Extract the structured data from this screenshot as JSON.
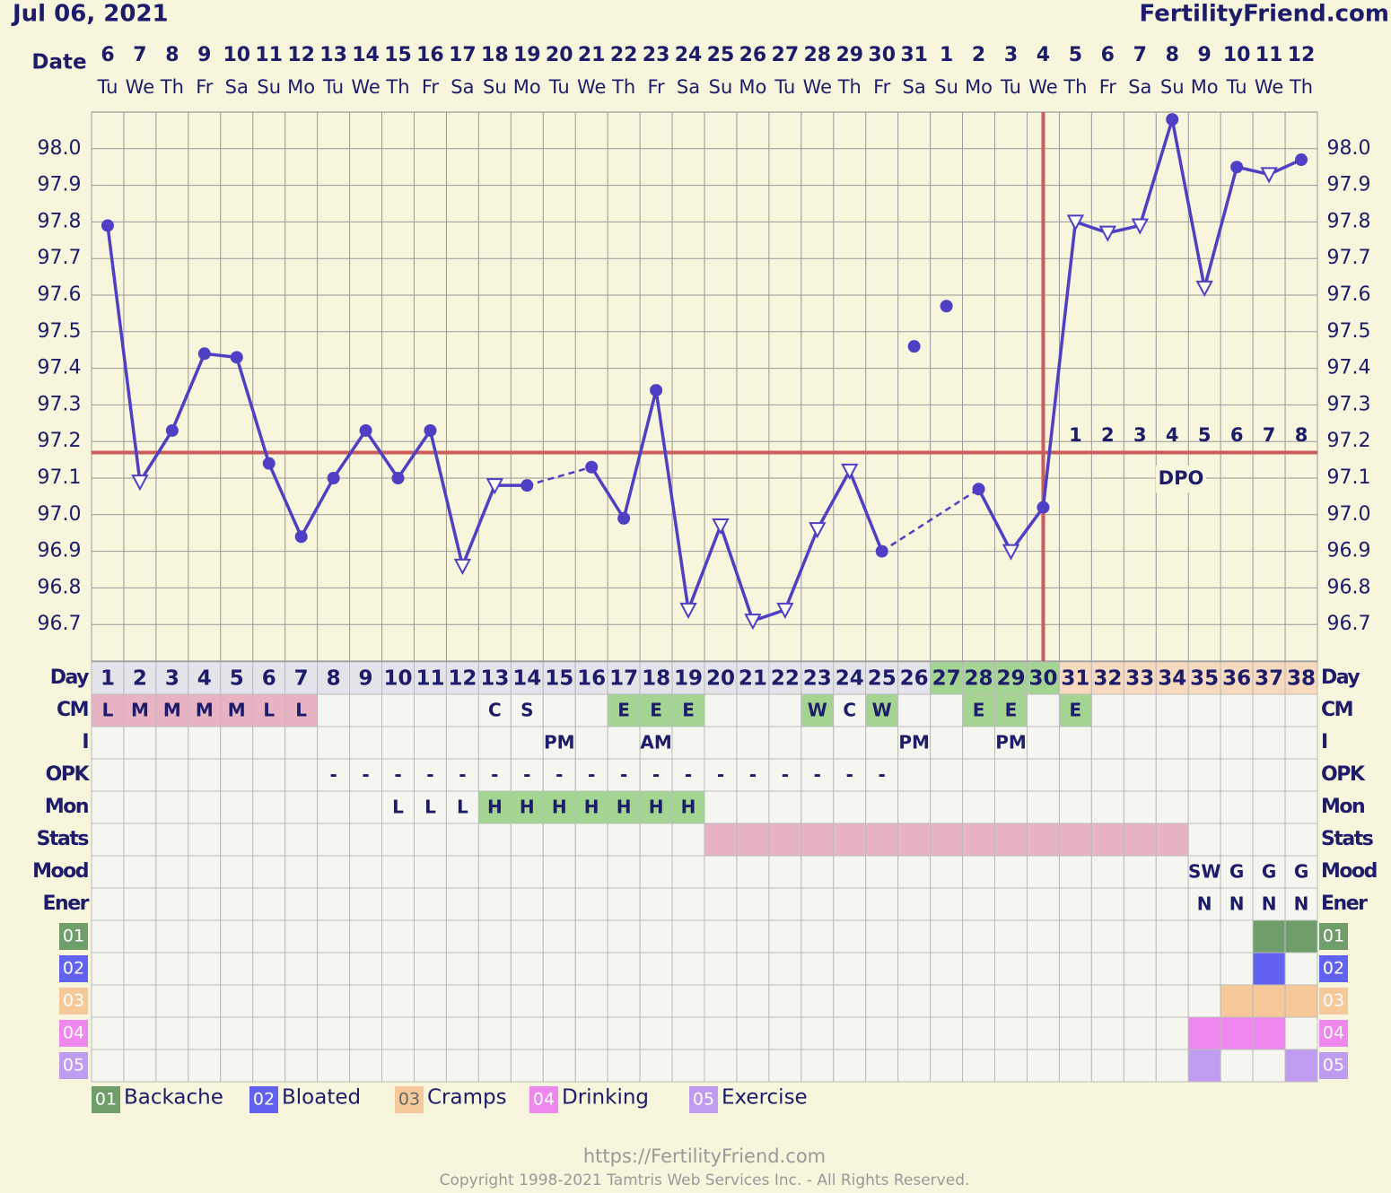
{
  "header": {
    "date": "Jul 06, 2021",
    "site": "FertilityFriend.com",
    "date_label": "Date"
  },
  "chart_data": {
    "type": "line",
    "dates": [
      "6",
      "7",
      "8",
      "9",
      "10",
      "11",
      "12",
      "13",
      "14",
      "15",
      "16",
      "17",
      "18",
      "19",
      "20",
      "21",
      "22",
      "23",
      "24",
      "25",
      "26",
      "27",
      "28",
      "29",
      "30",
      "31",
      "1",
      "2",
      "3",
      "4",
      "5",
      "6",
      "7",
      "8",
      "9",
      "10",
      "11",
      "12"
    ],
    "weekdays": [
      "Tu",
      "We",
      "Th",
      "Fr",
      "Sa",
      "Su",
      "Mo",
      "Tu",
      "We",
      "Th",
      "Fr",
      "Sa",
      "Su",
      "Mo",
      "Tu",
      "We",
      "Th",
      "Fr",
      "Sa",
      "Su",
      "Mo",
      "Tu",
      "We",
      "Th",
      "Fr",
      "Sa",
      "Su",
      "Mo",
      "Tu",
      "We",
      "Th",
      "Fr",
      "Sa",
      "Su",
      "Mo",
      "Tu",
      "We",
      "Th"
    ],
    "ylim": [
      96.6,
      98.1
    ],
    "yticks": [
      96.7,
      96.8,
      96.9,
      {
        "value": 97,
        "label": "97.0"
      },
      97.1,
      97.2,
      97.3,
      97.4,
      97.5,
      97.6,
      97.7,
      97.8,
      97.9,
      {
        "value": 98,
        "label": "98.0"
      }
    ],
    "grid": true,
    "series": [
      {
        "color": "#4f3fc4",
        "line": true,
        "values": [
          97.79,
          97.09,
          97.23,
          97.44,
          97.43,
          97.14,
          96.94,
          97.1,
          97.23,
          97.1,
          97.23,
          96.86,
          97.08,
          97.08,
          null,
          97.13,
          96.99,
          97.34,
          96.74,
          96.97,
          96.71,
          96.74,
          96.96,
          97.12,
          96.9,
          null,
          null,
          97.07,
          96.9,
          97.02,
          97.8,
          97.77,
          97.79,
          98.08,
          97.62,
          97.95,
          97.93,
          97.97
        ],
        "markers": [
          "circle",
          "triangle",
          "circle",
          "circle",
          "circle",
          "circle",
          "circle",
          "circle",
          "circle",
          "circle",
          "circle",
          "triangle",
          "triangle",
          "circle",
          null,
          "circle",
          "circle",
          "circle",
          "triangle",
          "triangle",
          "triangle",
          "triangle",
          "triangle",
          "triangle",
          "circle",
          null,
          null,
          "circle",
          "triangle",
          "circle",
          "triangle",
          "triangle",
          "triangle",
          "circle",
          "triangle",
          "circle",
          "triangle",
          "circle"
        ]
      },
      {
        "color": "#4f3fc4",
        "line": false,
        "values": [
          null,
          null,
          null,
          null,
          null,
          null,
          null,
          null,
          null,
          null,
          null,
          null,
          null,
          null,
          null,
          null,
          null,
          null,
          null,
          null,
          null,
          null,
          null,
          null,
          null,
          97.46,
          97.57,
          null,
          null,
          null,
          null,
          null,
          null,
          null,
          null,
          null,
          null,
          null
        ],
        "marker": "circle"
      }
    ],
    "coverline": 97.17,
    "coverline_color": "#cc5c5c",
    "ovulation_day": 30,
    "dpo_labels": [
      "1",
      "2",
      "3",
      "4",
      "5",
      "6",
      "7",
      "8"
    ],
    "dpo_title": "DPO"
  },
  "table": {
    "rows": [
      {
        "label": "Day",
        "cells": [
          "1",
          "2",
          "3",
          "4",
          "5",
          "6",
          "7",
          "8",
          "9",
          "10",
          "11",
          "12",
          "13",
          "14",
          "15",
          "16",
          "17",
          "18",
          "19",
          "20",
          "21",
          "22",
          "23",
          "24",
          "25",
          "26",
          "27",
          "28",
          "29",
          "30",
          "31",
          "32",
          "33",
          "34",
          "35",
          "36",
          "37",
          "38"
        ],
        "fill": [
          "#e3e3ea",
          "#e3e3ea",
          "#e3e3ea",
          "#e3e3ea",
          "#e3e3ea",
          "#e3e3ea",
          "#e3e3ea",
          "#e3e3ea",
          "#e3e3ea",
          "#e3e3ea",
          "#e3e3ea",
          "#e3e3ea",
          "#e3e3ea",
          "#e3e3ea",
          "#e3e3ea",
          "#e3e3ea",
          "#e3e3ea",
          "#e3e3ea",
          "#e3e3ea",
          "#e3e3ea",
          "#e3e3ea",
          "#e3e3ea",
          "#e3e3ea",
          "#e3e3ea",
          "#e3e3ea",
          "#e3e3ea",
          "#a3d491",
          "#a3d491",
          "#a3d491",
          "#a3d491",
          "#f7d9bd",
          "#f7d9bd",
          "#f7d9bd",
          "#f7d9bd",
          "#f7d9bd",
          "#f7d9bd",
          "#f7d9bd",
          "#f7d9bd"
        ]
      },
      {
        "label": "CM",
        "cells": [
          "L",
          "M",
          "M",
          "M",
          "M",
          "L",
          "L",
          null,
          null,
          null,
          null,
          null,
          "C",
          "S",
          null,
          null,
          "E",
          "E",
          "E",
          null,
          null,
          null,
          "W",
          "C",
          "W",
          null,
          null,
          "E",
          "E",
          null,
          "E",
          null,
          null,
          null,
          null,
          null,
          null,
          null
        ],
        "fill": [
          "#e8b4c4",
          "#e8b4c4",
          "#e8b4c4",
          "#e8b4c4",
          "#e8b4c4",
          "#e8b4c4",
          "#e8b4c4",
          null,
          null,
          null,
          null,
          null,
          null,
          null,
          null,
          null,
          "#a3d491",
          "#a3d491",
          "#a3d491",
          null,
          null,
          null,
          "#a3d491",
          null,
          "#a3d491",
          null,
          null,
          "#a3d491",
          "#a3d491",
          null,
          "#a3d491",
          null,
          null,
          null,
          null,
          null,
          null,
          null
        ]
      },
      {
        "label": "I",
        "cells": [
          null,
          null,
          null,
          null,
          null,
          null,
          null,
          null,
          null,
          null,
          null,
          null,
          null,
          null,
          "PM",
          null,
          null,
          "AM",
          null,
          null,
          null,
          null,
          null,
          null,
          null,
          "PM",
          null,
          null,
          "PM",
          null,
          null,
          null,
          null,
          null,
          null,
          null,
          null,
          null
        ]
      },
      {
        "label": "OPK",
        "cells": [
          null,
          null,
          null,
          null,
          null,
          null,
          null,
          "-",
          "-",
          "-",
          "-",
          "-",
          "-",
          "-",
          "-",
          "-",
          "-",
          "-",
          "-",
          "-",
          "-",
          "-",
          "-",
          "-",
          "-",
          null,
          null,
          null,
          null,
          null,
          null,
          null,
          null,
          null,
          null,
          null,
          null,
          null
        ]
      },
      {
        "label": "Mon",
        "cells": [
          null,
          null,
          null,
          null,
          null,
          null,
          null,
          null,
          null,
          "L",
          "L",
          "L",
          "H",
          "H",
          "H",
          "H",
          "H",
          "H",
          "H",
          null,
          null,
          null,
          null,
          null,
          null,
          null,
          null,
          null,
          null,
          null,
          null,
          null,
          null,
          null,
          null,
          null,
          null,
          null
        ],
        "fill": [
          null,
          null,
          null,
          null,
          null,
          null,
          null,
          null,
          null,
          null,
          null,
          null,
          "#a3d491",
          "#a3d491",
          "#a3d491",
          "#a3d491",
          "#a3d491",
          "#a3d491",
          "#a3d491",
          null,
          null,
          null,
          null,
          null,
          null,
          null,
          null,
          null,
          null,
          null,
          null,
          null,
          null,
          null,
          null,
          null,
          null,
          null
        ]
      },
      {
        "label": "Stats",
        "fill": [
          null,
          null,
          null,
          null,
          null,
          null,
          null,
          null,
          null,
          null,
          null,
          null,
          null,
          null,
          null,
          null,
          null,
          null,
          null,
          "#e8b4c4",
          "#e8b4c4",
          "#e8b4c4",
          "#e8b4c4",
          "#e8b4c4",
          "#e8b4c4",
          "#e8b4c4",
          "#e8b4c4",
          "#e8b4c4",
          "#e8b4c4",
          "#e8b4c4",
          "#e8b4c4",
          "#e8b4c4",
          "#e8b4c4",
          "#e8b4c4",
          null,
          null,
          null,
          null
        ]
      },
      {
        "label": "Mood",
        "cells": [
          null,
          null,
          null,
          null,
          null,
          null,
          null,
          null,
          null,
          null,
          null,
          null,
          null,
          null,
          null,
          null,
          null,
          null,
          null,
          null,
          null,
          null,
          null,
          null,
          null,
          null,
          null,
          null,
          null,
          null,
          null,
          null,
          null,
          null,
          "SW",
          "G",
          "G",
          "G"
        ]
      },
      {
        "label": "Ener",
        "cells": [
          null,
          null,
          null,
          null,
          null,
          null,
          null,
          null,
          null,
          null,
          null,
          null,
          null,
          null,
          null,
          null,
          null,
          null,
          null,
          null,
          null,
          null,
          null,
          null,
          null,
          null,
          null,
          null,
          null,
          null,
          null,
          null,
          null,
          null,
          "N",
          "N",
          "N",
          "N"
        ]
      },
      {
        "label": "01",
        "label_color": "#6f9e6a",
        "fill": [
          null,
          null,
          null,
          null,
          null,
          null,
          null,
          null,
          null,
          null,
          null,
          null,
          null,
          null,
          null,
          null,
          null,
          null,
          null,
          null,
          null,
          null,
          null,
          null,
          null,
          null,
          null,
          null,
          null,
          null,
          null,
          null,
          null,
          null,
          null,
          null,
          "#6f9e6a",
          "#6f9e6a"
        ]
      },
      {
        "label": "02",
        "label_color": "#6262f2",
        "fill": [
          null,
          null,
          null,
          null,
          null,
          null,
          null,
          null,
          null,
          null,
          null,
          null,
          null,
          null,
          null,
          null,
          null,
          null,
          null,
          null,
          null,
          null,
          null,
          null,
          null,
          null,
          null,
          null,
          null,
          null,
          null,
          null,
          null,
          null,
          null,
          null,
          "#6262f2",
          null
        ]
      },
      {
        "label": "03",
        "label_color": "#f5c99a",
        "fill": [
          null,
          null,
          null,
          null,
          null,
          null,
          null,
          null,
          null,
          null,
          null,
          null,
          null,
          null,
          null,
          null,
          null,
          null,
          null,
          null,
          null,
          null,
          null,
          null,
          null,
          null,
          null,
          null,
          null,
          null,
          null,
          null,
          null,
          null,
          null,
          "#f5c99a",
          "#f5c99a",
          "#f5c99a"
        ]
      },
      {
        "label": "04",
        "label_color": "#ee88ee",
        "fill": [
          null,
          null,
          null,
          null,
          null,
          null,
          null,
          null,
          null,
          null,
          null,
          null,
          null,
          null,
          null,
          null,
          null,
          null,
          null,
          null,
          null,
          null,
          null,
          null,
          null,
          null,
          null,
          null,
          null,
          null,
          null,
          null,
          null,
          null,
          "#ee88ee",
          "#ee88ee",
          "#ee88ee",
          null
        ]
      },
      {
        "label": "05",
        "label_color": "#c09cf0",
        "fill": [
          null,
          null,
          null,
          null,
          null,
          null,
          null,
          null,
          null,
          null,
          null,
          null,
          null,
          null,
          null,
          null,
          null,
          null,
          null,
          null,
          null,
          null,
          null,
          null,
          null,
          null,
          null,
          null,
          null,
          null,
          null,
          null,
          null,
          null,
          "#c09cf0",
          null,
          null,
          "#c09cf0"
        ]
      }
    ]
  },
  "legend": [
    {
      "code": "01",
      "name": "Backache",
      "color": "#6f9e6a"
    },
    {
      "code": "02",
      "name": "Bloated",
      "color": "#6262f2"
    },
    {
      "code": "03",
      "name": "Cramps",
      "color": "#f5c99a"
    },
    {
      "code": "04",
      "name": "Drinking",
      "color": "#ee88ee"
    },
    {
      "code": "05",
      "name": "Exercise",
      "color": "#c09cf0"
    }
  ],
  "footer": {
    "url": "https://FertilityFriend.com",
    "copyright": "Copyright 1998-2021 Tamtris Web Services Inc. - All Rights Reserved."
  }
}
